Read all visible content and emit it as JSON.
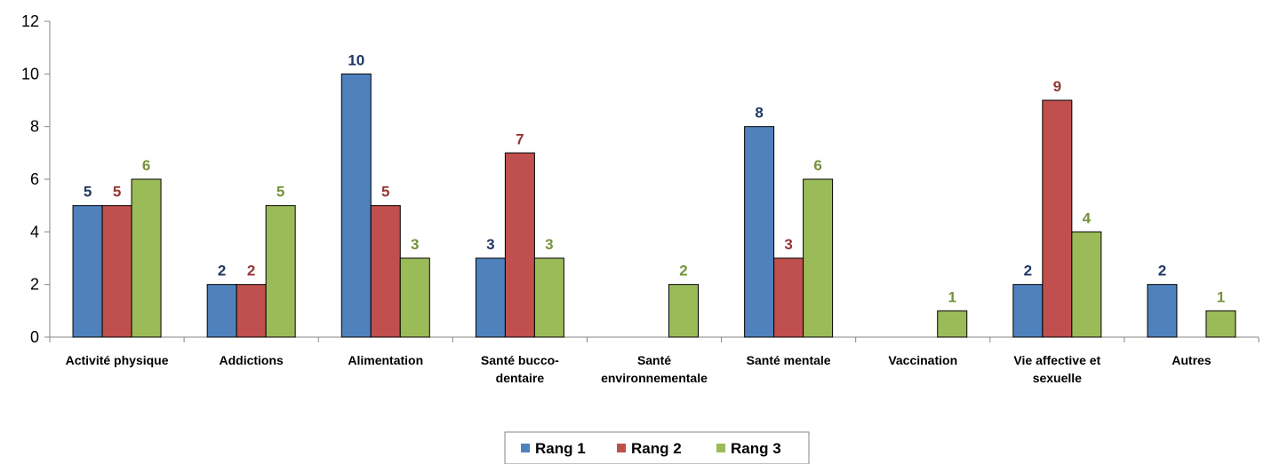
{
  "chart_data": {
    "type": "bar",
    "title": "",
    "xlabel": "",
    "ylabel": "",
    "ylim": [
      0,
      12
    ],
    "y_ticks": [
      0,
      2,
      4,
      6,
      8,
      10,
      12
    ],
    "grid": false,
    "legend_position": "bottom",
    "categories": [
      [
        "Activité physique"
      ],
      [
        "Addictions"
      ],
      [
        "Alimentation"
      ],
      [
        "Santé bucco-",
        "dentaire"
      ],
      [
        "Santé",
        "environnementale"
      ],
      [
        "Santé mentale"
      ],
      [
        "Vaccination"
      ],
      [
        "Vie affective et",
        "sexuelle"
      ],
      [
        "Autres"
      ]
    ],
    "series": [
      {
        "name": "Rang 1",
        "color": "#4F81BD",
        "label_color": "#1F3864",
        "values": [
          5,
          2,
          10,
          3,
          null,
          8,
          null,
          2,
          2
        ]
      },
      {
        "name": "Rang 2",
        "color": "#C0504D",
        "label_color": "#943634",
        "values": [
          5,
          2,
          5,
          7,
          null,
          3,
          null,
          9,
          null
        ]
      },
      {
        "name": "Rang 3",
        "color": "#9BBB59",
        "label_color": "#76923C",
        "values": [
          6,
          5,
          3,
          3,
          2,
          6,
          1,
          4,
          1
        ]
      }
    ]
  }
}
